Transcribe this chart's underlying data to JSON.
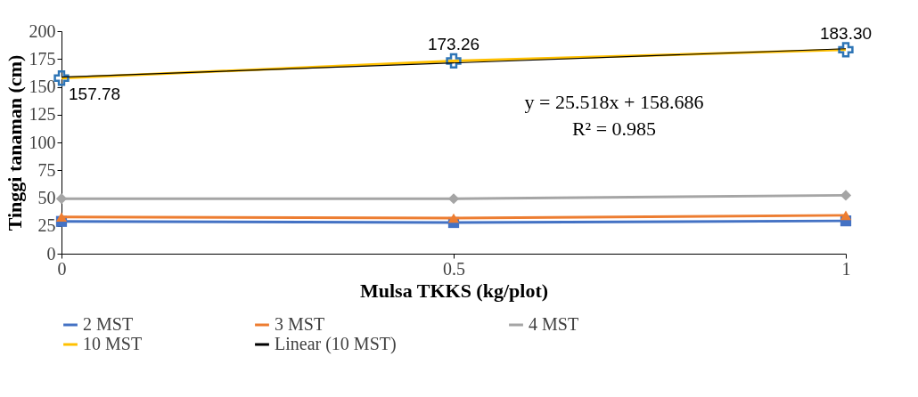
{
  "chart_data": {
    "type": "line",
    "xlabel": "Mulsa TKKS (kg/plot)",
    "ylabel": "Tinggi tanaman (cm)",
    "x": [
      0,
      0.5,
      1
    ],
    "xlim": [
      0,
      1
    ],
    "xticks": [
      0,
      0.5,
      1
    ],
    "ylim": [
      0,
      200
    ],
    "yticks": [
      0,
      25,
      50,
      75,
      100,
      125,
      150,
      175,
      200
    ],
    "grid": false,
    "legend": "bottom",
    "annotations": [
      "y = 25.518x + 158.686",
      "R² = 0.985"
    ],
    "series": [
      {
        "name": "2 MST",
        "color": "#4472c4",
        "marker": "square",
        "values": [
          29,
          28,
          29.5
        ]
      },
      {
        "name": "3 MST",
        "color": "#ed7d31",
        "marker": "triangle",
        "values": [
          33,
          32,
          34.5
        ]
      },
      {
        "name": "4 MST",
        "color": "#a5a5a5",
        "marker": "diamond",
        "values": [
          49.5,
          49.4,
          52.5
        ]
      },
      {
        "name": "10 MST",
        "color": "#ffc000",
        "marker": "cross",
        "colors": [
          "#2e75b6",
          "#2e75b6",
          "#2e75b6"
        ],
        "values": [
          157.78,
          173.26,
          183.3
        ],
        "value_labels": [
          "157.78",
          "173.26",
          "183.30"
        ]
      },
      {
        "name": "Linear (10 MST)",
        "color": "#000000",
        "marker": "none",
        "x": [
          0,
          1
        ],
        "values": [
          158.686,
          184.204
        ]
      }
    ]
  }
}
